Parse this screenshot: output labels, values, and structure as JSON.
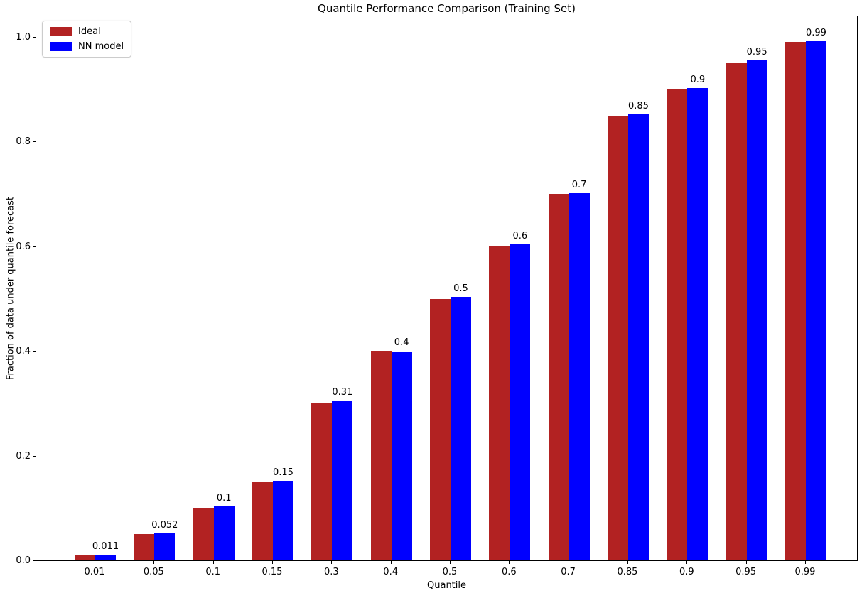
{
  "chart_data": {
    "type": "bar",
    "title": "Quantile Performance Comparison (Training Set)",
    "xlabel": "Quantile",
    "ylabel": "Fraction of data under quantile forecast",
    "categories": [
      "0.01",
      "0.05",
      "0.1",
      "0.15",
      "0.3",
      "0.4",
      "0.5",
      "0.6",
      "0.7",
      "0.85",
      "0.9",
      "0.95",
      "0.99"
    ],
    "series": [
      {
        "name": "Ideal",
        "color": "#b22222",
        "values": [
          0.01,
          0.05,
          0.1,
          0.15,
          0.3,
          0.4,
          0.5,
          0.6,
          0.7,
          0.85,
          0.9,
          0.95,
          0.99
        ]
      },
      {
        "name": "NN model",
        "color": "#0000ff",
        "values": [
          0.011,
          0.052,
          0.103,
          0.152,
          0.305,
          0.397,
          0.503,
          0.604,
          0.701,
          0.852,
          0.903,
          0.955,
          0.992
        ]
      }
    ],
    "bar_labels": [
      "0.011",
      "0.052",
      "0.1",
      "0.15",
      "0.31",
      "0.4",
      "0.5",
      "0.6",
      "0.7",
      "0.85",
      "0.9",
      "0.95",
      "0.99"
    ],
    "yticks": [
      "0.0",
      "0.2",
      "0.4",
      "0.6",
      "0.8",
      "1.0"
    ],
    "ylim": [
      0.0,
      1.042
    ],
    "legend_position": "upper left",
    "grid": false
  }
}
